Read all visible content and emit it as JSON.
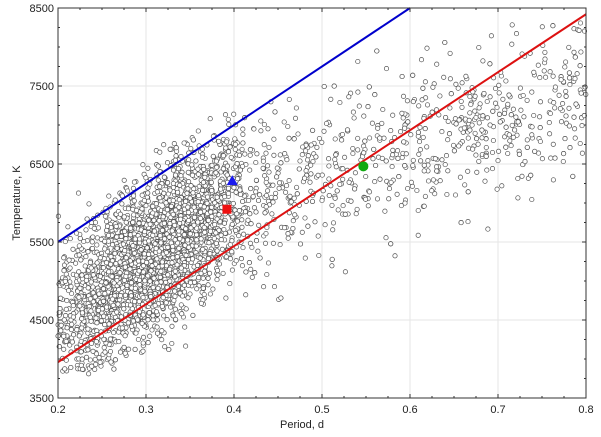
{
  "chart_data": {
    "type": "scatter",
    "title": "",
    "xlabel": "Period, d",
    "ylabel": "Temperature, K",
    "xlim": [
      0.2,
      0.8
    ],
    "ylim": [
      3500,
      8500
    ],
    "xticks": [
      "0.2",
      "0.3",
      "0.4",
      "0.5",
      "0.6",
      "0.7",
      "0.8"
    ],
    "yticks": [
      "3500",
      "4500",
      "5500",
      "6500",
      "7500",
      "8500"
    ],
    "grid": true,
    "legend": null,
    "series": [
      {
        "name": "stars",
        "marker": "open-circle",
        "color": "#555555",
        "description": "dense cloud of ~several thousand points, concentrated around period 0.25-0.40 d and 4500-6500 K, sparser toward longer periods up to 0.8 d and 7000-8000 K"
      },
      {
        "name": "blue-line",
        "type": "line",
        "color": "#0000cc",
        "points": [
          [
            0.2,
            5500
          ],
          [
            0.6,
            8500
          ]
        ]
      },
      {
        "name": "red-line",
        "type": "line",
        "color": "#dd1111",
        "points": [
          [
            0.2,
            3960
          ],
          [
            0.8,
            8420
          ]
        ]
      },
      {
        "name": "blue-triangle",
        "marker": "triangle",
        "color": "#1a1aee",
        "points": [
          [
            0.398,
            6280
          ]
        ]
      },
      {
        "name": "red-square",
        "marker": "square",
        "color": "#ee1111",
        "points": [
          [
            0.392,
            5920
          ]
        ]
      },
      {
        "name": "green-circle",
        "marker": "circle",
        "color": "#11aa11",
        "points": [
          [
            0.547,
            6470
          ]
        ]
      }
    ]
  }
}
